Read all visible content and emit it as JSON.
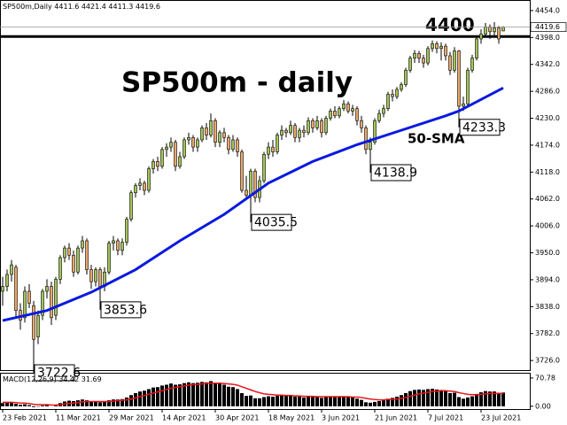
{
  "chart_data": {
    "type": "candlestick",
    "symbol": "SP500m,Daily",
    "title": "SP500m - daily",
    "up_color": "#a4c45a",
    "down_color": "#e9a86c",
    "categories": [
      "23 Feb 2021",
      null,
      null,
      null,
      null,
      null,
      null,
      null,
      null,
      null,
      null,
      null,
      "11 Mar 2021",
      null,
      null,
      null,
      null,
      null,
      null,
      null,
      null,
      null,
      null,
      null,
      "29 Mar 2021",
      null,
      null,
      null,
      null,
      null,
      null,
      null,
      null,
      null,
      null,
      null,
      "14 Apr 2021",
      null,
      null,
      null,
      null,
      null,
      null,
      null,
      null,
      null,
      null,
      null,
      "30 Apr 2021",
      null,
      null,
      null,
      null,
      null,
      null,
      null,
      null,
      null,
      null,
      null,
      "18 May 2021",
      null,
      null,
      null,
      null,
      null,
      null,
      null,
      null,
      null,
      null,
      null,
      "3 Jun 2021",
      null,
      null,
      null,
      null,
      null,
      null,
      null,
      null,
      null,
      null,
      null,
      "21 Jun 2021",
      null,
      null,
      null,
      null,
      null,
      null,
      null,
      null,
      null,
      null,
      null,
      "7 Jul 2021",
      null,
      null,
      null,
      null,
      null,
      null,
      null,
      null,
      null,
      null,
      null,
      "23 Jul 2021",
      null,
      null,
      null,
      null,
      null
    ],
    "candles": [
      [
        3870,
        3900,
        3840,
        3880
      ],
      [
        3880,
        3915,
        3870,
        3905
      ],
      [
        3905,
        3935,
        3890,
        3925
      ],
      [
        3920,
        3925,
        3815,
        3830
      ],
      [
        3830,
        3845,
        3790,
        3810
      ],
      [
        3815,
        3880,
        3805,
        3870
      ],
      [
        3870,
        3885,
        3835,
        3845
      ],
      [
        3840,
        3850,
        3722.6,
        3770
      ],
      [
        3775,
        3830,
        3760,
        3820
      ],
      [
        3820,
        3875,
        3810,
        3870
      ],
      [
        3870,
        3895,
        3855,
        3880
      ],
      [
        3880,
        3890,
        3800,
        3815
      ],
      [
        3820,
        3900,
        3810,
        3895
      ],
      [
        3895,
        3945,
        3885,
        3940
      ],
      [
        3940,
        3965,
        3930,
        3960
      ],
      [
        3960,
        3970,
        3935,
        3945
      ],
      [
        3945,
        3955,
        3900,
        3910
      ],
      [
        3910,
        3965,
        3905,
        3960
      ],
      [
        3960,
        3985,
        3950,
        3975
      ],
      [
        3975,
        3980,
        3905,
        3915
      ],
      [
        3915,
        3925,
        3875,
        3890
      ],
      [
        3890,
        3920,
        3880,
        3915
      ],
      [
        3915,
        3920,
        3853.6,
        3880
      ],
      [
        3880,
        3920,
        3870,
        3910
      ],
      [
        3910,
        3975,
        3905,
        3970
      ],
      [
        3970,
        3985,
        3955,
        3975
      ],
      [
        3975,
        3980,
        3945,
        3955
      ],
      [
        3955,
        3980,
        3945,
        3972
      ],
      [
        3972,
        4025,
        3965,
        4020
      ],
      [
        4020,
        4080,
        4015,
        4075
      ],
      [
        4075,
        4095,
        4065,
        4090
      ],
      [
        4090,
        4105,
        4080,
        4095
      ],
      [
        4095,
        4100,
        4070,
        4080
      ],
      [
        4080,
        4130,
        4075,
        4125
      ],
      [
        4125,
        4145,
        4115,
        4140
      ],
      [
        4140,
        4150,
        4120,
        4130
      ],
      [
        4130,
        4170,
        4125,
        4165
      ],
      [
        4165,
        4178,
        4150,
        4170
      ],
      [
        4170,
        4190,
        4160,
        4180
      ],
      [
        4180,
        4185,
        4120,
        4130
      ],
      [
        4130,
        4160,
        4125,
        4150
      ],
      [
        4150,
        4190,
        4145,
        4185
      ],
      [
        4185,
        4200,
        4175,
        4190
      ],
      [
        4190,
        4195,
        4160,
        4170
      ],
      [
        4170,
        4190,
        4160,
        4185
      ],
      [
        4185,
        4215,
        4180,
        4210
      ],
      [
        4210,
        4220,
        4185,
        4195
      ],
      [
        4195,
        4240,
        4190,
        4225
      ],
      [
        4225,
        4230,
        4170,
        4180
      ],
      [
        4180,
        4205,
        4170,
        4200
      ],
      [
        4200,
        4210,
        4180,
        4190
      ],
      [
        4190,
        4195,
        4155,
        4165
      ],
      [
        4165,
        4195,
        4160,
        4185
      ],
      [
        4185,
        4190,
        4150,
        4160
      ],
      [
        4160,
        4165,
        4075,
        4080
      ],
      [
        4080,
        4110,
        4060,
        4070
      ],
      [
        4070,
        4125,
        4035.5,
        4120
      ],
      [
        4120,
        4125,
        4055,
        4065
      ],
      [
        4065,
        4110,
        4055,
        4100
      ],
      [
        4100,
        4160,
        4095,
        4155
      ],
      [
        4155,
        4180,
        4145,
        4170
      ],
      [
        4170,
        4185,
        4150,
        4160
      ],
      [
        4160,
        4200,
        4155,
        4195
      ],
      [
        4195,
        4215,
        4185,
        4205
      ],
      [
        4205,
        4210,
        4190,
        4200
      ],
      [
        4200,
        4225,
        4195,
        4215
      ],
      [
        4215,
        4220,
        4180,
        4190
      ],
      [
        4190,
        4210,
        4180,
        4205
      ],
      [
        4205,
        4215,
        4190,
        4200
      ],
      [
        4200,
        4232,
        4195,
        4225
      ],
      [
        4225,
        4230,
        4200,
        4210
      ],
      [
        4210,
        4235,
        4205,
        4225
      ],
      [
        4225,
        4230,
        4190,
        4200
      ],
      [
        4200,
        4235,
        4195,
        4230
      ],
      [
        4230,
        4250,
        4225,
        4245
      ],
      [
        4245,
        4255,
        4230,
        4235
      ],
      [
        4235,
        4255,
        4230,
        4250
      ],
      [
        4250,
        4268,
        4245,
        4260
      ],
      [
        4260,
        4265,
        4240,
        4245
      ],
      [
        4245,
        4258,
        4235,
        4250
      ],
      [
        4250,
        4255,
        4215,
        4225
      ],
      [
        4225,
        4235,
        4200,
        4210
      ],
      [
        4210,
        4215,
        4155,
        4165
      ],
      [
        4165,
        4190,
        4138.9,
        4180
      ],
      [
        4180,
        4230,
        4175,
        4225
      ],
      [
        4225,
        4248,
        4220,
        4240
      ],
      [
        4240,
        4258,
        4232,
        4250
      ],
      [
        4250,
        4285,
        4245,
        4280
      ],
      [
        4280,
        4290,
        4265,
        4275
      ],
      [
        4275,
        4295,
        4270,
        4290
      ],
      [
        4290,
        4305,
        4285,
        4300
      ],
      [
        4300,
        4335,
        4295,
        4330
      ],
      [
        4330,
        4360,
        4325,
        4355
      ],
      [
        4355,
        4372,
        4345,
        4365
      ],
      [
        4365,
        4370,
        4345,
        4355
      ],
      [
        4355,
        4362,
        4335,
        4345
      ],
      [
        4345,
        4380,
        4340,
        4375
      ],
      [
        4375,
        4392,
        4368,
        4385
      ],
      [
        4385,
        4390,
        4365,
        4375
      ],
      [
        4375,
        4388,
        4350,
        4380
      ],
      [
        4380,
        4385,
        4350,
        4360
      ],
      [
        4360,
        4368,
        4320,
        4330
      ],
      [
        4330,
        4378,
        4325,
        4370
      ],
      [
        4370,
        4372,
        4233.3,
        4255
      ],
      [
        4255,
        4275,
        4245,
        4260
      ],
      [
        4260,
        4335,
        4255,
        4330
      ],
      [
        4330,
        4362,
        4325,
        4355
      ],
      [
        4355,
        4400,
        4350,
        4395
      ],
      [
        4395,
        4415,
        4385,
        4405
      ],
      [
        4405,
        4428,
        4398,
        4420
      ],
      [
        4420,
        4425,
        4395,
        4410
      ],
      [
        4410,
        4430,
        4400,
        4418
      ],
      [
        4418,
        4422,
        4385,
        4395
      ],
      [
        4411.6,
        4421.4,
        4411.3,
        4419.6
      ]
    ],
    "ylim": [
      3706,
      4476
    ],
    "yticks": [
      {
        "value": 4454,
        "label": "4454.0"
      },
      {
        "value": 4398,
        "label": "4398.0"
      },
      {
        "value": 4342,
        "label": "4342.0"
      },
      {
        "value": 4286,
        "label": "4286.0"
      },
      {
        "value": 4230,
        "label": "4230.0"
      },
      {
        "value": 4174,
        "label": "4174.0"
      },
      {
        "value": 4118,
        "label": "4118.0"
      },
      {
        "value": 4062,
        "label": "4062.0"
      },
      {
        "value": 4006,
        "label": "4006.0"
      },
      {
        "value": 3950,
        "label": "3950.0"
      },
      {
        "value": 3894,
        "label": "3894.0"
      },
      {
        "value": 3838,
        "label": "3838.0"
      },
      {
        "value": 3782,
        "label": "3782.0"
      },
      {
        "value": 3726,
        "label": "3726.0"
      }
    ],
    "level": {
      "value": 4400
    },
    "annotations": [
      {
        "x": 7,
        "value": 3722.6
      },
      {
        "x": 22,
        "value": 3853.6
      },
      {
        "x": 56,
        "value": 4035.5
      },
      {
        "x": 83,
        "value": 4138.9
      },
      {
        "x": 103,
        "value": 4233.3
      }
    ],
    "sma": {
      "name": "50-SMA",
      "color": "#0a1adf",
      "x": [
        0,
        10,
        20,
        30,
        40,
        50,
        60,
        70,
        80,
        90,
        100,
        103,
        113
      ],
      "values": [
        3809,
        3830,
        3868,
        3915,
        3975,
        4030,
        4095,
        4140,
        4175,
        4205,
        4235,
        4245,
        4293
      ]
    },
    "macd": {
      "name": "MACD(12,26,9)",
      "color": "#000000",
      "values": [
        8,
        9,
        10,
        6,
        4,
        5,
        3,
        -2,
        -1,
        2,
        3,
        0,
        4,
        8,
        12,
        14,
        13,
        15,
        17,
        15,
        12,
        12,
        10,
        11,
        15,
        17,
        17,
        18,
        22,
        28,
        33,
        37,
        39,
        43,
        47,
        48,
        52,
        54,
        57,
        54,
        55,
        58,
        60,
        58,
        59,
        61,
        60,
        63,
        58,
        57,
        54,
        49,
        48,
        43,
        33,
        26,
        27,
        20,
        20,
        23,
        25,
        24,
        26,
        27,
        26,
        27,
        24,
        24,
        22,
        24,
        23,
        24,
        21,
        23,
        24,
        23,
        24,
        25,
        23,
        22,
        19,
        16,
        10,
        9,
        11,
        13,
        15,
        19,
        21,
        24,
        28,
        33,
        38,
        41,
        42,
        41,
        43,
        44,
        42,
        41,
        38,
        33,
        34,
        23,
        19,
        22,
        25,
        31,
        35,
        38,
        37,
        37,
        34,
        34.42
      ],
      "signal": {
        "color": "#e8141a",
        "values": [
          10,
          10,
          10,
          9,
          8,
          8,
          7,
          5,
          4,
          4,
          4,
          3,
          3,
          4,
          6,
          7,
          8,
          9,
          11,
          12,
          12,
          12,
          12,
          12,
          12,
          13,
          14,
          15,
          16,
          18,
          21,
          24,
          27,
          30,
          33,
          36,
          39,
          42,
          45,
          47,
          49,
          51,
          53,
          54,
          55,
          56,
          57,
          58,
          58,
          58,
          57,
          56,
          55,
          53,
          49,
          45,
          41,
          37,
          34,
          31,
          30,
          29,
          28,
          28,
          27,
          27,
          26,
          26,
          25,
          25,
          25,
          24,
          24,
          24,
          24,
          24,
          24,
          24,
          24,
          23,
          23,
          22,
          20,
          18,
          17,
          16,
          16,
          17,
          17,
          18,
          20,
          22,
          25,
          28,
          31,
          33,
          35,
          37,
          38,
          39,
          39,
          38,
          37,
          34,
          32,
          30,
          29,
          29,
          30,
          31,
          32,
          32,
          32,
          31.69
        ]
      },
      "ylim": [
        -7,
        84
      ],
      "yticks": [
        70.78,
        {
          "value": 0,
          "label": "0.00"
        }
      ]
    }
  }
}
